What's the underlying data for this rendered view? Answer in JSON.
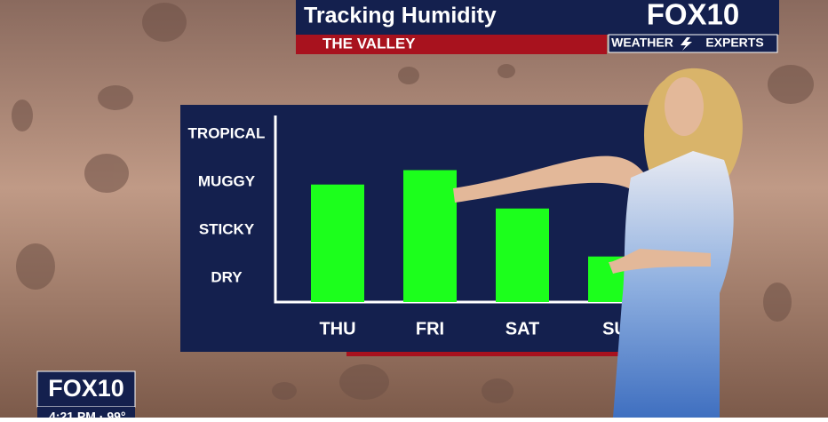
{
  "header": {
    "title": "Tracking Humidity",
    "subtitle": "THE VALLEY"
  },
  "logo": {
    "name": "FOX10",
    "tagline_left": "WEATHER",
    "tagline_right": "EXPERTS"
  },
  "bug": {
    "name": "FOX10",
    "status": "4:21 PM · 99°"
  },
  "chart_data": {
    "type": "bar",
    "categories": [
      "THU",
      "FRI",
      "SAT",
      "SU"
    ],
    "values": [
      2.95,
      3.25,
      2.45,
      1.45
    ],
    "color": "#1cff1c",
    "ylim": [
      0.5,
      4.5
    ],
    "yticks": [
      {
        "value": 1,
        "label": "DRY"
      },
      {
        "value": 2,
        "label": "STICKY"
      },
      {
        "value": 3,
        "label": "MUGGY"
      },
      {
        "value": 4,
        "label": "TROPICAL"
      }
    ]
  }
}
